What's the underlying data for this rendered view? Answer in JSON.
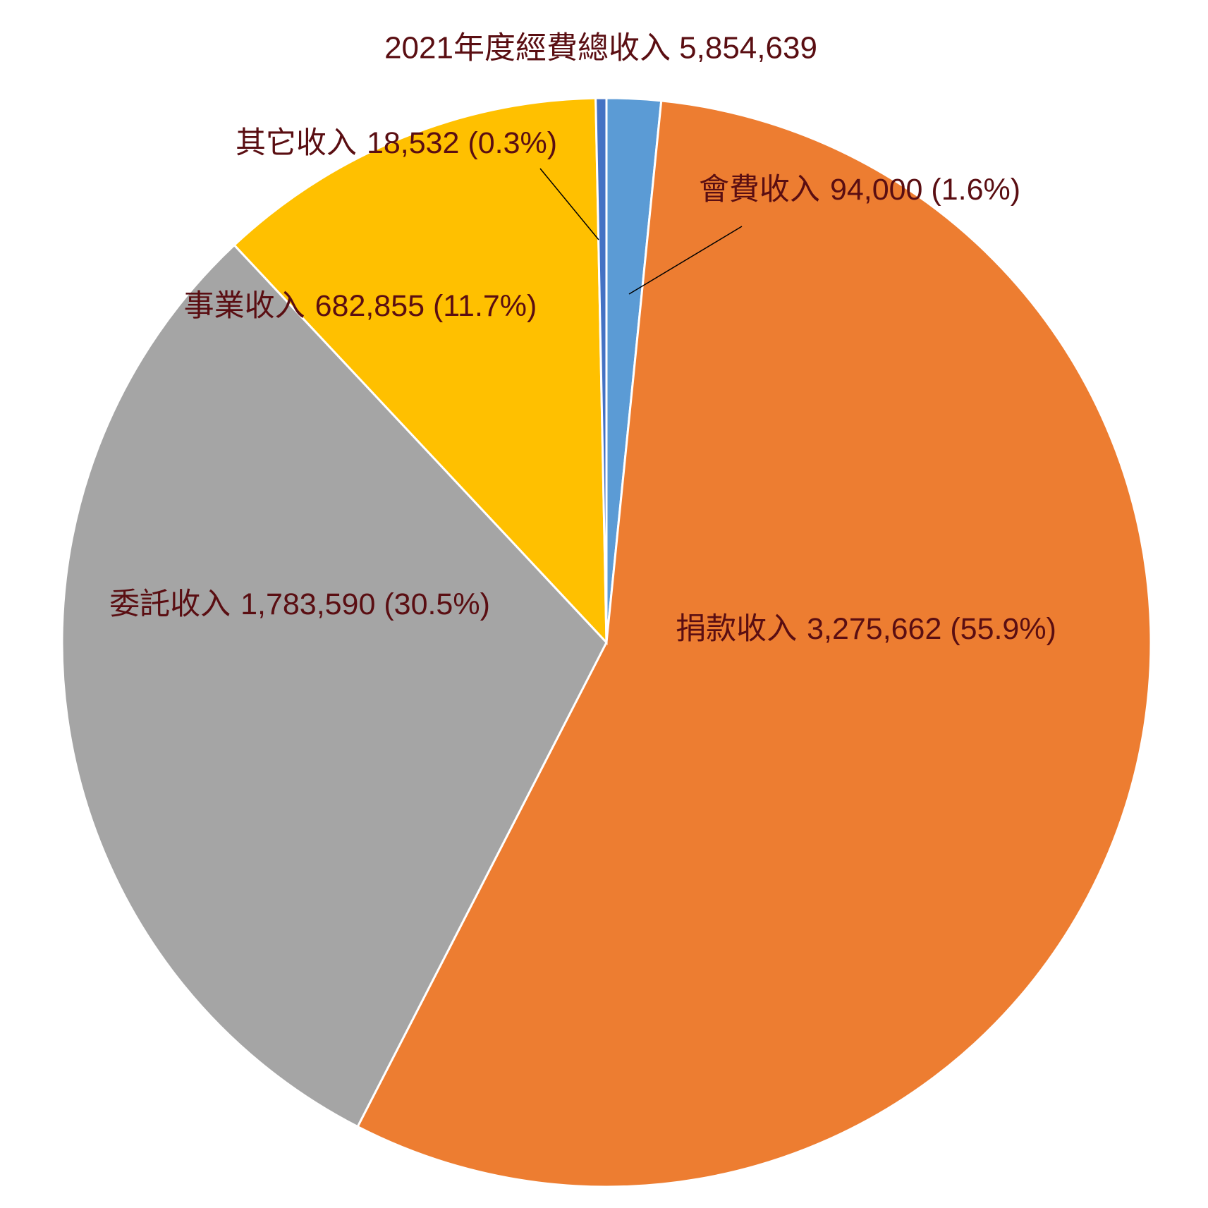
{
  "chart_data": {
    "type": "pie",
    "title": "2021年度經費總收入 5,854,639",
    "categories": [
      "會費收入",
      "捐款收入",
      "委託收入",
      "事業收入",
      "其它收入"
    ],
    "values": [
      94000,
      3275662,
      1783590,
      682855,
      18532
    ],
    "value_labels": [
      "94,000 (1.6%)",
      "3,275,662 (55.9%)",
      "1,783,590 (30.5%)",
      "682,855 (11.7%)",
      "18,532 (0.3%)"
    ],
    "colors": [
      "#5b9bd5",
      "#ed7d31",
      "#a5a5a5",
      "#ffc000",
      "#4472c4"
    ]
  }
}
